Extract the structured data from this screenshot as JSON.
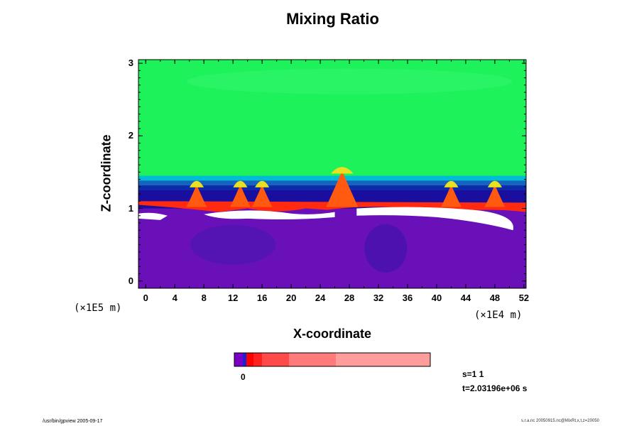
{
  "chart_data": {
    "type": "heatmap",
    "title": "Mixing Ratio",
    "xlabel": "X-coordinate",
    "ylabel": "Z-coordinate",
    "x_scale_label": "(×1E4 m)",
    "y_scale_label": "(×1E5 m)",
    "x_ticks": [
      "0",
      "4",
      "8",
      "12",
      "16",
      "20",
      "24",
      "28",
      "32",
      "36",
      "40",
      "44",
      "48",
      "52"
    ],
    "y_ticks": [
      "0",
      "1",
      "2",
      "3"
    ],
    "xlim": [
      -1,
      52.3
    ],
    "ylim": [
      -0.1,
      3.05
    ],
    "colorbar": {
      "tick_label": "0",
      "colors": [
        "#7a00c8",
        "#2020d0",
        "#ff0000",
        "#ff2020",
        "#ff4a4a",
        "#ff7a7a",
        "#ff9d9d"
      ]
    },
    "layers": [
      {
        "name": "upper",
        "z_range": [
          1.45,
          3.05
        ],
        "color": "#1ef25a"
      },
      {
        "name": "transition",
        "z_range": [
          1.25,
          1.45
        ],
        "colors": [
          "#00bcd4",
          "#1565c0",
          "#0d2aa8"
        ]
      },
      {
        "name": "lower",
        "z_range": [
          -0.1,
          1.0
        ],
        "color": "#6a10b8"
      }
    ],
    "plumes_x": [
      7,
      13,
      16,
      27,
      42,
      48
    ],
    "annotations": {
      "step": "s=1 1",
      "time": "t=2.03196e+06 s"
    }
  },
  "footer": {
    "left": "/usr/bin/gpview 2005-09-17",
    "right": "s.r.a.nc 20050915.nc@MixRt,x,t,z=20050"
  }
}
